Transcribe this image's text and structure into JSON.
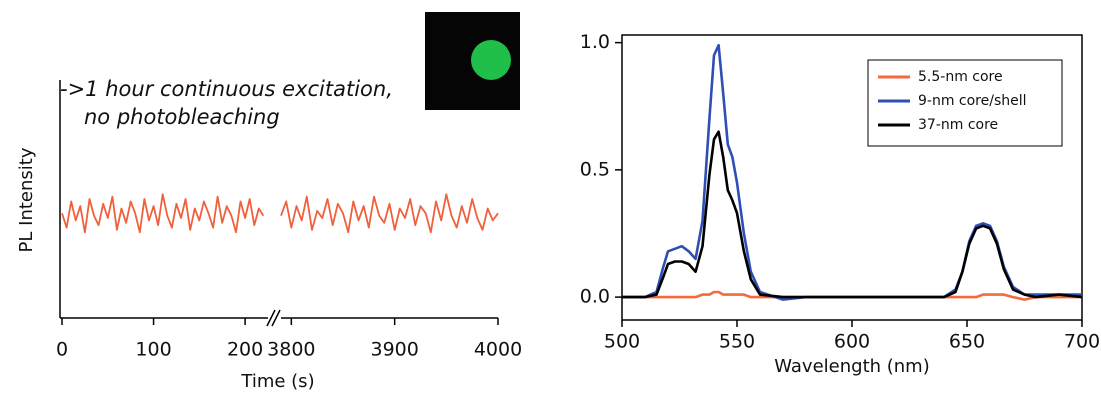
{
  "chart_data": [
    {
      "type": "line",
      "ylabel": "PL Intensity",
      "xlabel": "Time (s)",
      "annotations": [
        "->1 hour continuous excitation,",
        "no photobleaching"
      ],
      "ylim": [
        0,
        1
      ],
      "xaxes": [
        {
          "xlim": [
            0,
            225
          ],
          "xticks": [
            0,
            100,
            200
          ]
        },
        {
          "xlim": [
            3790,
            4000
          ],
          "xticks": [
            3800,
            3900,
            4000
          ]
        }
      ],
      "series": [
        {
          "color": "#f0603c",
          "xaxis": 0,
          "x": [
            0,
            5,
            10,
            15,
            20,
            25,
            30,
            35,
            40,
            45,
            50,
            55,
            60,
            65,
            70,
            75,
            80,
            85,
            90,
            95,
            100,
            105,
            110,
            115,
            120,
            125,
            130,
            135,
            140,
            145,
            150,
            155,
            160,
            165,
            170,
            175,
            180,
            185,
            190,
            195,
            200,
            205,
            210,
            215,
            220
          ],
          "values": [
            0.44,
            0.38,
            0.49,
            0.41,
            0.47,
            0.36,
            0.5,
            0.43,
            0.39,
            0.48,
            0.42,
            0.51,
            0.37,
            0.46,
            0.4,
            0.49,
            0.44,
            0.36,
            0.5,
            0.41,
            0.47,
            0.39,
            0.52,
            0.43,
            0.38,
            0.48,
            0.42,
            0.5,
            0.37,
            0.46,
            0.41,
            0.49,
            0.44,
            0.38,
            0.51,
            0.4,
            0.47,
            0.43,
            0.36,
            0.49,
            0.42,
            0.5,
            0.39,
            0.46,
            0.43
          ]
        },
        {
          "color": "#f0603c",
          "xaxis": 1,
          "x": [
            3790,
            3795,
            3800,
            3805,
            3810,
            3815,
            3820,
            3825,
            3830,
            3835,
            3840,
            3845,
            3850,
            3855,
            3860,
            3865,
            3870,
            3875,
            3880,
            3885,
            3890,
            3895,
            3900,
            3905,
            3910,
            3915,
            3920,
            3925,
            3930,
            3935,
            3940,
            3945,
            3950,
            3955,
            3960,
            3965,
            3970,
            3975,
            3980,
            3985,
            3990,
            3995,
            4000
          ],
          "values": [
            0.43,
            0.49,
            0.38,
            0.47,
            0.41,
            0.51,
            0.37,
            0.45,
            0.42,
            0.5,
            0.39,
            0.48,
            0.44,
            0.36,
            0.49,
            0.41,
            0.47,
            0.38,
            0.51,
            0.43,
            0.4,
            0.48,
            0.37,
            0.46,
            0.42,
            0.5,
            0.39,
            0.47,
            0.44,
            0.36,
            0.49,
            0.41,
            0.52,
            0.43,
            0.38,
            0.47,
            0.4,
            0.5,
            0.42,
            0.37,
            0.46,
            0.41,
            0.44
          ]
        }
      ]
    },
    {
      "type": "line",
      "xlabel": "Wavelength (nm)",
      "xlim": [
        500,
        700
      ],
      "xticks": [
        500,
        550,
        600,
        650,
        700
      ],
      "ylim": [
        -0.09,
        1.03
      ],
      "yticks": [
        {
          "value": 0,
          "label": "0.0"
        },
        {
          "value": 0.5,
          "label": "0.5"
        },
        {
          "value": 1,
          "label": "1.0"
        }
      ],
      "legend": "top-right",
      "x": [
        500,
        510,
        515,
        518,
        520,
        523,
        526,
        529,
        532,
        535,
        538,
        540,
        542,
        544,
        546,
        548,
        550,
        553,
        556,
        560,
        570,
        580,
        590,
        600,
        610,
        620,
        630,
        640,
        645,
        648,
        651,
        654,
        657,
        660,
        663,
        666,
        670,
        675,
        680,
        690,
        700
      ],
      "series": [
        {
          "name": "5.5-nm core",
          "color": "#f26a3d",
          "values": [
            0,
            0,
            0,
            0,
            0,
            0,
            0,
            0,
            0,
            0.01,
            0.01,
            0.02,
            0.02,
            0.01,
            0.01,
            0.01,
            0.01,
            0.01,
            0,
            0,
            0,
            0,
            0,
            0,
            0,
            0,
            0,
            0,
            0,
            0,
            0,
            0,
            0.01,
            0.01,
            0.01,
            0.01,
            0,
            -0.01,
            0,
            0,
            0
          ]
        },
        {
          "name": "9-nm core/shell",
          "color": "#2f4fb5",
          "values": [
            0,
            0,
            0.02,
            0.12,
            0.18,
            0.19,
            0.2,
            0.18,
            0.15,
            0.3,
            0.7,
            0.95,
            0.99,
            0.8,
            0.6,
            0.55,
            0.45,
            0.25,
            0.1,
            0.02,
            -0.01,
            0,
            0,
            0,
            0,
            0,
            0,
            0,
            0.03,
            0.1,
            0.22,
            0.28,
            0.29,
            0.28,
            0.22,
            0.12,
            0.04,
            0.01,
            0.01,
            0.01,
            0.01
          ]
        },
        {
          "name": "37-nm core",
          "color": "#000000",
          "values": [
            0,
            0,
            0.01,
            0.08,
            0.13,
            0.14,
            0.14,
            0.13,
            0.1,
            0.2,
            0.48,
            0.62,
            0.65,
            0.55,
            0.42,
            0.38,
            0.33,
            0.18,
            0.07,
            0.01,
            0,
            0,
            0,
            0,
            0,
            0,
            0,
            0,
            0.02,
            0.1,
            0.21,
            0.27,
            0.28,
            0.27,
            0.21,
            0.11,
            0.03,
            0.01,
            0,
            0.01,
            0
          ]
        }
      ]
    }
  ]
}
